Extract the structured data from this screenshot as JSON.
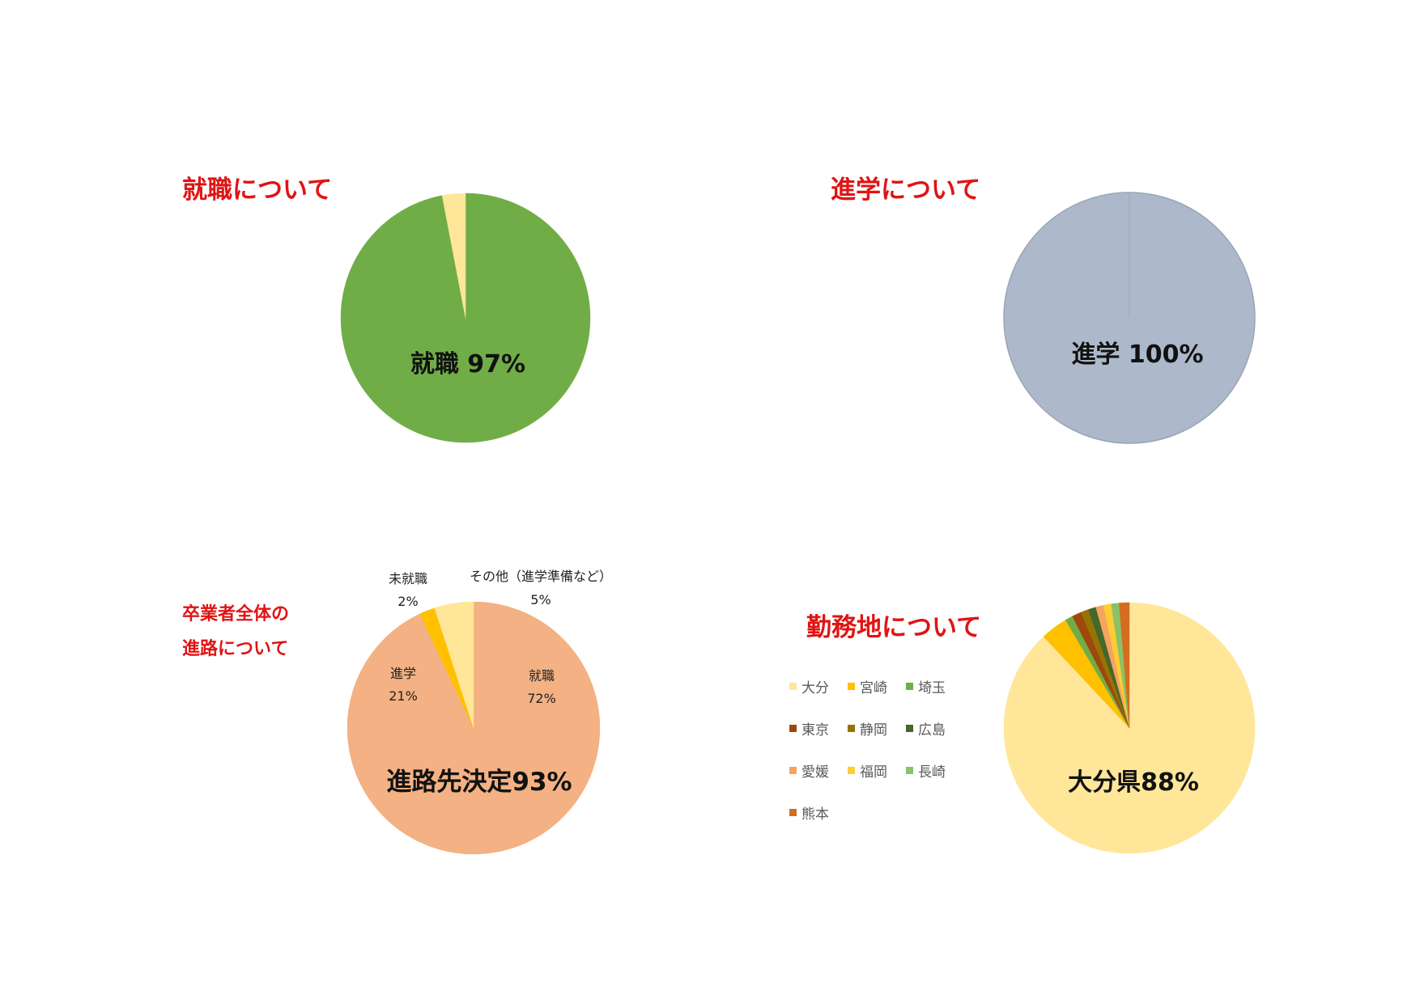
{
  "titles": {
    "employment": "就職について",
    "higher_education": "進学について",
    "graduates_line1": "卒業者全体の",
    "graduates_line2": "進路について",
    "workplace": "勤務地について"
  },
  "chart_data": [
    {
      "type": "pie",
      "title": "就職について",
      "slices": [
        {
          "label": "就職",
          "value": 97,
          "color": "#70ad47"
        },
        {
          "label": "",
          "value": 3,
          "color": "#ffe699"
        }
      ],
      "center_label": "就職 97%"
    },
    {
      "type": "pie",
      "title": "進学について",
      "slices": [
        {
          "label": "進学",
          "value": 100,
          "color": "#adb9ca"
        }
      ],
      "center_label": "進学 100%"
    },
    {
      "type": "pie",
      "title": "卒業者全体の進路について",
      "slices": [
        {
          "label": "就職",
          "value": 72,
          "value_label": "72%",
          "color": "#f4b183"
        },
        {
          "label": "進学",
          "value": 21,
          "value_label": "21%",
          "color": "#f4b183"
        },
        {
          "label": "未就職",
          "value": 2,
          "value_label": "2%",
          "color": "#ffc000"
        },
        {
          "label": "その他（進学準備など）",
          "value": 5,
          "value_label": "5%",
          "color": "#ffe699"
        }
      ],
      "center_label": "進路先決定93%"
    },
    {
      "type": "pie",
      "title": "勤務地について",
      "slices": [
        {
          "label": "大分",
          "value": 88,
          "color": "#ffe699"
        },
        {
          "label": "宮崎",
          "value": 3.5,
          "color": "#ffc000"
        },
        {
          "label": "埼玉",
          "value": 1,
          "color": "#70ad47"
        },
        {
          "label": "東京",
          "value": 1.2,
          "color": "#9e480e"
        },
        {
          "label": "静岡",
          "value": 1,
          "color": "#997300"
        },
        {
          "label": "広島",
          "value": 1,
          "color": "#43682b"
        },
        {
          "label": "愛媛",
          "value": 1,
          "color": "#f4a460"
        },
        {
          "label": "福岡",
          "value": 1,
          "color": "#ffcd33"
        },
        {
          "label": "長崎",
          "value": 1,
          "color": "#8cc168"
        },
        {
          "label": "熊本",
          "value": 1.3,
          "color": "#d26e1e"
        }
      ],
      "legend_position": "left",
      "center_label": "大分県88%"
    }
  ]
}
